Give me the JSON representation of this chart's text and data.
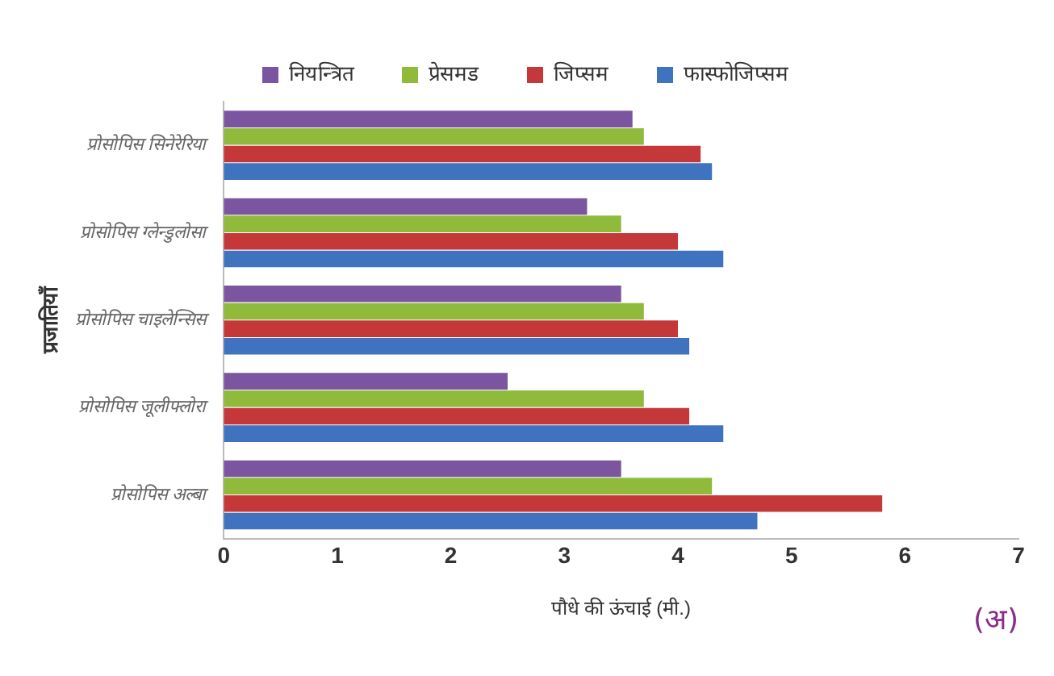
{
  "chart_data": {
    "type": "bar",
    "orientation": "horizontal",
    "xlabel": "पौधे की ऊंचाई (मी.)",
    "ylabel": "प्रजातियाँ",
    "categories": [
      "प्रोसोपिस सिनेरेरिया",
      "प्रोसोपिस ग्लेन्डुलोसा",
      "प्रोसोपिस चाइलेन्सिस",
      "प्रोसोपिस जूलीफ्लोरा",
      "प्रोसोपिस अल्बा"
    ],
    "series": [
      {
        "name": "नियन्त्रित",
        "color": "#7b55a0",
        "values": [
          3.6,
          3.2,
          3.5,
          2.5,
          3.5
        ]
      },
      {
        "name": "प्रेसमड",
        "color": "#8fba3c",
        "values": [
          3.7,
          3.5,
          3.7,
          3.7,
          4.3
        ]
      },
      {
        "name": "जिप्सम",
        "color": "#c4383a",
        "values": [
          4.2,
          4.0,
          4.0,
          4.1,
          5.8
        ]
      },
      {
        "name": "फास्फोजिप्सम",
        "color": "#3f73c0",
        "values": [
          4.3,
          4.4,
          4.1,
          4.4,
          4.7
        ]
      }
    ],
    "xlim": [
      0,
      7
    ],
    "xticks": [
      0,
      1,
      2,
      3,
      4,
      5,
      6,
      7
    ],
    "grid": false,
    "legend": "top",
    "annotations": [
      "(अ)"
    ]
  }
}
